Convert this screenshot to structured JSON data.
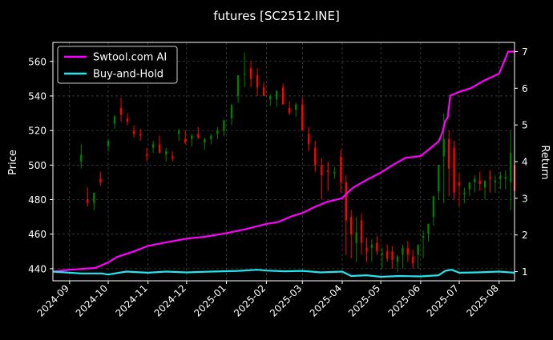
{
  "chart_data": {
    "type": "line",
    "title": "futures [SC2512.INE]",
    "xlabel": "",
    "ylabel": "Price",
    "y2label": "Return",
    "xlim": [
      "2024-08-19",
      "2025-08-13"
    ],
    "ylim": [
      433,
      571
    ],
    "y2lim": [
      0.75,
      7.25
    ],
    "x_ticks": [
      "2024-09",
      "2024-10",
      "2024-11",
      "2024-12",
      "2025-01",
      "2025-02",
      "2025-03",
      "2025-04",
      "2025-05",
      "2025-06",
      "2025-07",
      "2025-08"
    ],
    "y_ticks": [
      440,
      460,
      480,
      500,
      520,
      540,
      560
    ],
    "y2_ticks": [
      1,
      2,
      3,
      4,
      5,
      6,
      7
    ],
    "grid": true,
    "legend": "top-left",
    "series": [
      {
        "name": "Swtool.com AI",
        "color": "#ff00ff",
        "axis": "right",
        "x": [
          "2024-08-19",
          "2024-09-01",
          "2024-09-21",
          "2024-10-01",
          "2024-10-08",
          "2024-10-21",
          "2024-11-01",
          "2024-11-15",
          "2024-12-01",
          "2024-12-15",
          "2025-01-01",
          "2025-01-15",
          "2025-02-01",
          "2025-02-10",
          "2025-02-20",
          "2025-03-01",
          "2025-03-10",
          "2025-03-20",
          "2025-04-01",
          "2025-04-05",
          "2025-04-10",
          "2025-04-20",
          "2025-05-01",
          "2025-05-10",
          "2025-05-20",
          "2025-06-01",
          "2025-06-08",
          "2025-06-15",
          "2025-06-18",
          "2025-06-20",
          "2025-06-22",
          "2025-06-24",
          "2025-07-01",
          "2025-07-10",
          "2025-07-20",
          "2025-08-01",
          "2025-08-04",
          "2025-08-08",
          "2025-08-13"
        ],
        "values": [
          1.0,
          1.05,
          1.1,
          1.25,
          1.4,
          1.55,
          1.7,
          1.8,
          1.9,
          1.95,
          2.05,
          2.15,
          2.3,
          2.35,
          2.5,
          2.6,
          2.75,
          2.9,
          3.0,
          3.15,
          3.3,
          3.5,
          3.7,
          3.9,
          4.1,
          4.15,
          4.35,
          4.55,
          4.8,
          5.1,
          5.2,
          5.8,
          5.9,
          6.0,
          6.2,
          6.4,
          6.65,
          7.0,
          7.0
        ]
      },
      {
        "name": "Buy-and-Hold",
        "color": "#22e5ee",
        "axis": "right",
        "x": [
          "2024-08-19",
          "2024-09-10",
          "2024-09-26",
          "2024-10-01",
          "2024-10-15",
          "2024-11-01",
          "2024-11-15",
          "2024-12-01",
          "2024-12-20",
          "2025-01-10",
          "2025-01-25",
          "2025-02-01",
          "2025-02-15",
          "2025-03-01",
          "2025-03-15",
          "2025-04-01",
          "2025-04-08",
          "2025-04-20",
          "2025-05-01",
          "2025-05-15",
          "2025-06-01",
          "2025-06-15",
          "2025-06-20",
          "2025-06-25",
          "2025-07-01",
          "2025-07-15",
          "2025-08-01",
          "2025-08-13"
        ],
        "values": [
          1.0,
          0.95,
          0.95,
          0.92,
          1.0,
          0.97,
          1.0,
          0.98,
          1.0,
          1.02,
          1.05,
          1.03,
          1.01,
          1.02,
          0.98,
          1.0,
          0.88,
          0.9,
          0.86,
          0.88,
          0.87,
          0.9,
          1.02,
          1.05,
          0.97,
          0.98,
          1.0,
          0.97
        ]
      }
    ],
    "candlesticks": {
      "name": "SC2512.INE",
      "up_color": "#008000",
      "down_color": "#ff0000",
      "axis": "left",
      "date": [
        "2024-09-10",
        "2024-09-15",
        "2024-09-20",
        "2024-09-25",
        "2024-10-01",
        "2024-10-06",
        "2024-10-11",
        "2024-10-16",
        "2024-10-21",
        "2024-10-26",
        "2024-10-31",
        "2024-11-05",
        "2024-11-10",
        "2024-11-15",
        "2024-11-20",
        "2024-11-25",
        "2024-11-30",
        "2024-12-05",
        "2024-12-10",
        "2024-12-15",
        "2024-12-20",
        "2024-12-25",
        "2024-12-30",
        "2025-01-05",
        "2025-01-10",
        "2025-01-15",
        "2025-01-20",
        "2025-01-25",
        "2025-01-30",
        "2025-02-04",
        "2025-02-09",
        "2025-02-14",
        "2025-02-19",
        "2025-02-24",
        "2025-03-01",
        "2025-03-06",
        "2025-03-11",
        "2025-03-16",
        "2025-03-21",
        "2025-03-26",
        "2025-03-31",
        "2025-04-04",
        "2025-04-08",
        "2025-04-12",
        "2025-04-16",
        "2025-04-20",
        "2025-04-24",
        "2025-04-28",
        "2025-05-02",
        "2025-05-06",
        "2025-05-10",
        "2025-05-14",
        "2025-05-18",
        "2025-05-22",
        "2025-05-26",
        "2025-05-30",
        "2025-06-03",
        "2025-06-07",
        "2025-06-11",
        "2025-06-15",
        "2025-06-19",
        "2025-06-23",
        "2025-06-27",
        "2025-07-01",
        "2025-07-05",
        "2025-07-09",
        "2025-07-13",
        "2025-07-17",
        "2025-07-21",
        "2025-07-25",
        "2025-07-29",
        "2025-08-02",
        "2025-08-06",
        "2025-08-10",
        "2025-08-13"
      ],
      "open": [
        502,
        480,
        478,
        492,
        511,
        524,
        533,
        527,
        520,
        518,
        506,
        510,
        512,
        506,
        505,
        518,
        515,
        515,
        518,
        513,
        515,
        518,
        520,
        527,
        540,
        553,
        556,
        552,
        545,
        538,
        538,
        545,
        533,
        532,
        535,
        518,
        510,
        500,
        497,
        495,
        505,
        490,
        470,
        455,
        468,
        452,
        452,
        455,
        448,
        450,
        450,
        444,
        448,
        452,
        447,
        448,
        458,
        460,
        470,
        485,
        505,
        515,
        510,
        490,
        483,
        486,
        490,
        491,
        487,
        493,
        490,
        492,
        492,
        490,
        500
      ],
      "high": [
        512,
        487,
        482,
        496,
        515,
        529,
        539,
        530,
        523,
        521,
        510,
        514,
        517,
        510,
        508,
        521,
        520,
        518,
        522,
        516,
        518,
        522,
        524,
        532,
        545,
        565,
        560,
        556,
        548,
        541,
        541,
        547,
        537,
        536,
        539,
        522,
        514,
        504,
        502,
        499,
        509,
        494,
        474,
        470,
        472,
        458,
        457,
        459,
        452,
        454,
        453,
        448,
        454,
        456,
        451,
        452,
        462,
        464,
        474,
        494,
        530,
        520,
        514,
        495,
        487,
        490,
        494,
        496,
        491,
        497,
        494,
        496,
        497,
        520,
        506
      ],
      "low": [
        498,
        476,
        474,
        488,
        508,
        521,
        525,
        523,
        516,
        514,
        502,
        507,
        507,
        502,
        502,
        514,
        512,
        511,
        515,
        509,
        512,
        515,
        517,
        523,
        536,
        545,
        545,
        540,
        540,
        534,
        534,
        542,
        529,
        528,
        520,
        508,
        496,
        480,
        485,
        492,
        484,
        448,
        446,
        444,
        448,
        444,
        444,
        448,
        440,
        444,
        440,
        438,
        440,
        444,
        440,
        440,
        446,
        456,
        465,
        480,
        478,
        482,
        480,
        476,
        478,
        482,
        484,
        485,
        480,
        484,
        484,
        486,
        486,
        474,
        478
      ],
      "close": [
        506,
        478,
        484,
        490,
        514,
        528,
        529,
        525,
        518,
        517,
        505,
        512,
        507,
        508,
        504,
        520,
        513,
        517,
        516,
        515,
        517,
        520,
        526,
        535,
        552,
        553,
        550,
        545,
        540,
        540,
        543,
        535,
        530,
        535,
        520,
        512,
        500,
        494,
        496,
        496,
        490,
        468,
        460,
        461,
        455,
        450,
        454,
        450,
        449,
        446,
        445,
        447,
        452,
        448,
        443,
        454,
        459,
        466,
        482,
        500,
        515,
        498,
        484,
        488,
        484,
        490,
        492,
        489,
        491,
        492,
        491,
        494,
        493,
        507,
        485
      ]
    }
  }
}
